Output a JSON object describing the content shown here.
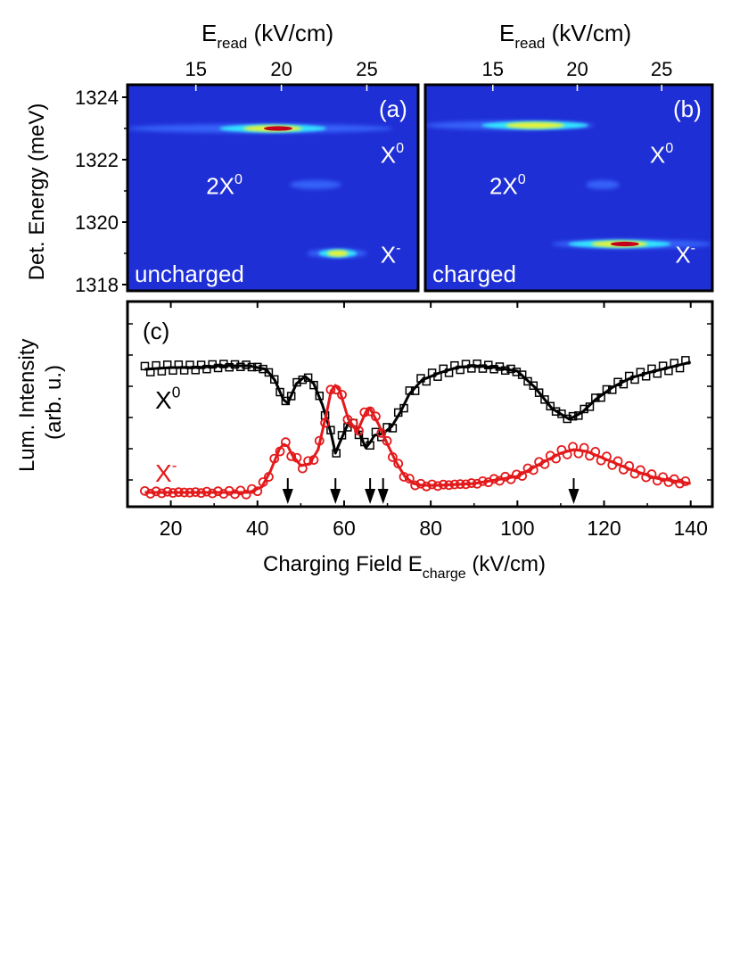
{
  "figure": {
    "top_axis_label": {
      "main": "E",
      "sub": "read",
      "unit": " (kV/cm)"
    },
    "left_axis_label": "Det. Energy (meV)",
    "bottom_axis_label": {
      "main": "Charging Field E",
      "sub": "charge",
      "unit": " (kV/cm)"
    },
    "lower_left_axis_label_line1": "Lum. Intensity",
    "lower_left_axis_label_line2": "(arb. u.)"
  },
  "chart_data": [
    {
      "type": "heatmap",
      "panel": "(a)",
      "corner_label": "uncharged",
      "xlabel": "E_read (kV/cm)",
      "ylabel": "Det. Energy (meV)",
      "xlim": [
        11,
        28
      ],
      "ylim": [
        1317.8,
        1324.4
      ],
      "xticks": [
        15,
        20,
        25
      ],
      "yticks": [
        1318,
        1320,
        1322,
        1324
      ],
      "colors": {
        "background": "#1f2fd6",
        "low": "#3b6cff",
        "mid": "#33e6ff",
        "high": "#e7f23a",
        "peak": "#c4001a"
      },
      "annotations": [
        {
          "text": "2X",
          "sup": "0",
          "x": 15.6,
          "y": 1320.9
        },
        {
          "text": "X",
          "sup": "0",
          "x": 25.8,
          "y": 1321.9
        },
        {
          "text": "X",
          "sup": "-",
          "x": 25.8,
          "y": 1318.7
        }
      ],
      "features": [
        {
          "line": "X0",
          "energy": 1323.0,
          "x_from": 11,
          "x_to": 26.5,
          "peak_x": 19.5,
          "level": "peak"
        },
        {
          "line": "2X0",
          "energy": 1321.2,
          "x_from": 20.5,
          "x_to": 23.5,
          "peak_x": 22.0,
          "level": "low"
        },
        {
          "line": "X-",
          "energy": 1319.0,
          "x_from": 21.5,
          "x_to": 25,
          "peak_x": 23.3,
          "level": "mid"
        }
      ]
    },
    {
      "type": "heatmap",
      "panel": "(b)",
      "corner_label": "charged",
      "xlabel": "E_read (kV/cm)",
      "xlim": [
        11,
        28
      ],
      "ylim": [
        1317.8,
        1324.4
      ],
      "xticks": [
        15,
        20,
        25
      ],
      "annotations": [
        {
          "text": "2X",
          "sup": "0",
          "x": 14.8,
          "y": 1320.9
        },
        {
          "text": "X",
          "sup": "0",
          "x": 24.3,
          "y": 1321.9
        },
        {
          "text": "X",
          "sup": "-",
          "x": 25.8,
          "y": 1318.7
        }
      ],
      "features": [
        {
          "line": "X0",
          "energy": 1323.1,
          "x_from": 11,
          "x_to": 21,
          "peak_x": 17.5,
          "level": "mid"
        },
        {
          "line": "2X0",
          "energy": 1321.2,
          "x_from": 20.5,
          "x_to": 22.5,
          "peak_x": 21.5,
          "level": "low"
        },
        {
          "line": "X-",
          "energy": 1319.3,
          "x_from": 18.5,
          "x_to": 28,
          "peak_x": 22.5,
          "level": "peak"
        }
      ]
    },
    {
      "type": "line",
      "panel": "(c)",
      "xlabel": "Charging Field E_charge (kV/cm)",
      "ylabel": "Lum. Intensity (arb. u.)",
      "xlim": [
        10,
        145
      ],
      "ylim": [
        0,
        1
      ],
      "xticks": [
        20,
        40,
        60,
        80,
        100,
        120,
        140
      ],
      "markers_at_x": [
        47,
        58,
        66,
        69,
        113
      ],
      "series": [
        {
          "name": "X0",
          "label_main": "X",
          "label_sup": "0",
          "color": "#000000",
          "marker": "square",
          "x": [
            14,
            20,
            26,
            32,
            38,
            42,
            44,
            46,
            47,
            49,
            51,
            53,
            55,
            57,
            58,
            59,
            61,
            63,
            65,
            66,
            67,
            69,
            71,
            73,
            75,
            78,
            82,
            86,
            90,
            95,
            100,
            104,
            108,
            112,
            115,
            118,
            122,
            126,
            130,
            135,
            140
          ],
          "y": [
            0.72,
            0.73,
            0.73,
            0.74,
            0.74,
            0.72,
            0.66,
            0.55,
            0.53,
            0.64,
            0.68,
            0.64,
            0.52,
            0.36,
            0.25,
            0.31,
            0.42,
            0.39,
            0.28,
            0.31,
            0.35,
            0.36,
            0.4,
            0.48,
            0.58,
            0.66,
            0.7,
            0.73,
            0.74,
            0.73,
            0.71,
            0.62,
            0.5,
            0.44,
            0.48,
            0.55,
            0.62,
            0.67,
            0.7,
            0.73,
            0.76
          ]
        },
        {
          "name": "X-",
          "label_main": "X",
          "label_sup": "-",
          "color": "#e31a1c",
          "marker": "circle",
          "x": [
            14,
            20,
            30,
            38,
            41,
            43,
            45,
            46,
            47,
            48,
            50,
            52,
            54,
            56,
            57,
            58,
            59,
            61,
            63,
            65,
            66,
            68,
            70,
            72,
            74,
            76,
            78,
            82,
            90,
            100,
            106,
            110,
            113,
            116,
            120,
            126,
            132,
            140
          ],
          "y": [
            0.03,
            0.03,
            0.03,
            0.03,
            0.06,
            0.15,
            0.27,
            0.3,
            0.29,
            0.24,
            0.18,
            0.19,
            0.27,
            0.48,
            0.6,
            0.63,
            0.6,
            0.44,
            0.37,
            0.48,
            0.5,
            0.41,
            0.3,
            0.2,
            0.12,
            0.08,
            0.07,
            0.07,
            0.08,
            0.12,
            0.2,
            0.25,
            0.27,
            0.26,
            0.22,
            0.16,
            0.11,
            0.08
          ]
        }
      ]
    }
  ]
}
